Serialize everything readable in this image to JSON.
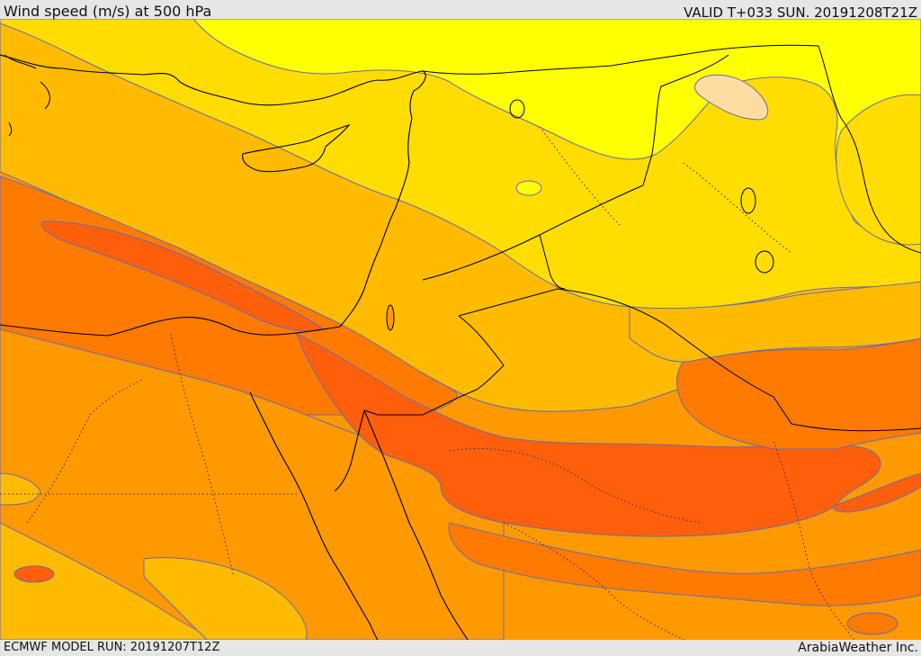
{
  "header": {
    "title": "Wind speed (m/s) at 500 hPa",
    "valid": "VALID T+033 SUN. 20191208T21Z"
  },
  "footer": {
    "model_run": "ECMWF MODEL RUN: 20191207T12Z",
    "brand": "ArabiaWeather Inc."
  },
  "colors": {
    "band_lightest": "#ffff00",
    "band_yellow": "#ffdd00",
    "band_amber": "#ffbb00",
    "band_orange": "#ff9900",
    "band_deep_orange": "#ff7a00",
    "band_red_orange": "#ff5f0a",
    "pale_patch": "#ffdda0",
    "contour": "#6b6bb0",
    "border": "#000000"
  }
}
